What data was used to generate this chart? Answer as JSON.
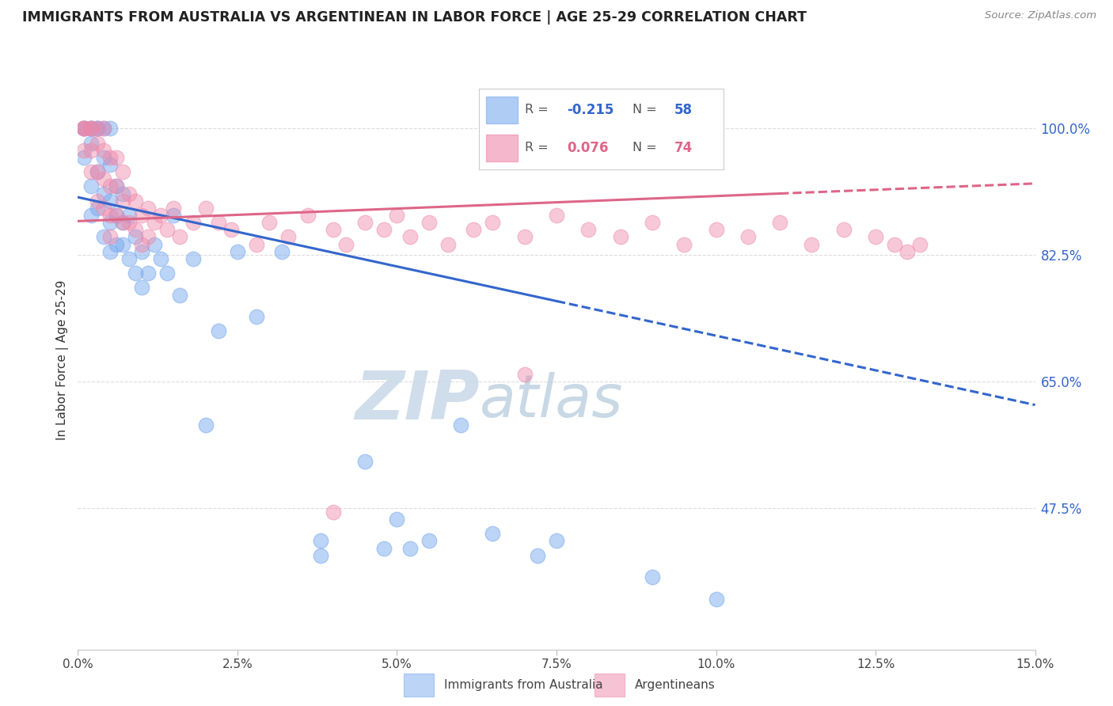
{
  "title": "IMMIGRANTS FROM AUSTRALIA VS ARGENTINEAN IN LABOR FORCE | AGE 25-29 CORRELATION CHART",
  "source": "Source: ZipAtlas.com",
  "ylabel": "In Labor Force | Age 25-29",
  "xmin": 0.0,
  "xmax": 0.15,
  "ymin": 0.28,
  "ymax": 1.08,
  "australia_R": -0.215,
  "australia_N": 58,
  "argentina_R": 0.076,
  "argentina_N": 74,
  "australia_color": "#7aaaee",
  "argentina_color": "#ee88aa",
  "blue_line_color": "#3366cc",
  "pink_line_color": "#dd6688",
  "blue_line_solid_end_x": 0.075,
  "blue_line_x0": 0.0,
  "blue_line_y0": 0.905,
  "blue_line_x1": 0.15,
  "blue_line_y1": 0.618,
  "pink_line_x0": 0.0,
  "pink_line_y0": 0.872,
  "pink_line_x1": 0.15,
  "pink_line_y1": 0.924,
  "pink_line_solid_end_x": 0.11,
  "ytick_vals": [
    0.475,
    0.65,
    0.825,
    1.0
  ],
  "ytick_labels": [
    "47.5%",
    "65.0%",
    "82.5%",
    "100.0%"
  ],
  "watermark_text_zip": "ZIP",
  "watermark_text_atlas": "atlas",
  "watermark_color": "#c8d8e8",
  "background_color": "#ffffff",
  "grid_color": "#dddddd",
  "aus_x": [
    0.001,
    0.001,
    0.001,
    0.002,
    0.002,
    0.002,
    0.002,
    0.002,
    0.003,
    0.003,
    0.003,
    0.003,
    0.004,
    0.004,
    0.004,
    0.004,
    0.005,
    0.005,
    0.005,
    0.005,
    0.005,
    0.006,
    0.006,
    0.006,
    0.007,
    0.007,
    0.007,
    0.008,
    0.008,
    0.009,
    0.009,
    0.01,
    0.01,
    0.011,
    0.012,
    0.013,
    0.014,
    0.015,
    0.016,
    0.018,
    0.02,
    0.022,
    0.025,
    0.028,
    0.032,
    0.038,
    0.038,
    0.045,
    0.048,
    0.05,
    0.052,
    0.055,
    0.06,
    0.065,
    0.072,
    0.075,
    0.09,
    0.1
  ],
  "aus_y": [
    1.0,
    1.0,
    0.96,
    1.0,
    1.0,
    0.98,
    0.92,
    0.88,
    1.0,
    1.0,
    0.94,
    0.89,
    1.0,
    0.96,
    0.91,
    0.85,
    1.0,
    0.95,
    0.9,
    0.87,
    0.83,
    0.92,
    0.88,
    0.84,
    0.91,
    0.87,
    0.84,
    0.88,
    0.82,
    0.85,
    0.8,
    0.83,
    0.78,
    0.8,
    0.84,
    0.82,
    0.8,
    0.88,
    0.77,
    0.82,
    0.59,
    0.72,
    0.83,
    0.74,
    0.83,
    0.41,
    0.43,
    0.54,
    0.42,
    0.46,
    0.42,
    0.43,
    0.59,
    0.44,
    0.41,
    0.43,
    0.38,
    0.35
  ],
  "arg_x": [
    0.001,
    0.001,
    0.001,
    0.001,
    0.002,
    0.002,
    0.002,
    0.002,
    0.003,
    0.003,
    0.003,
    0.003,
    0.004,
    0.004,
    0.004,
    0.004,
    0.005,
    0.005,
    0.005,
    0.005,
    0.006,
    0.006,
    0.006,
    0.007,
    0.007,
    0.007,
    0.008,
    0.008,
    0.009,
    0.009,
    0.01,
    0.01,
    0.011,
    0.011,
    0.012,
    0.013,
    0.014,
    0.015,
    0.016,
    0.018,
    0.02,
    0.022,
    0.024,
    0.028,
    0.03,
    0.033,
    0.036,
    0.04,
    0.042,
    0.045,
    0.048,
    0.05,
    0.052,
    0.055,
    0.058,
    0.062,
    0.065,
    0.07,
    0.075,
    0.08,
    0.085,
    0.09,
    0.095,
    0.1,
    0.105,
    0.11,
    0.115,
    0.12,
    0.125,
    0.128,
    0.13,
    0.132,
    0.07,
    0.04
  ],
  "arg_y": [
    1.0,
    1.0,
    1.0,
    0.97,
    1.0,
    1.0,
    0.97,
    0.94,
    1.0,
    0.98,
    0.94,
    0.9,
    1.0,
    0.97,
    0.93,
    0.89,
    0.96,
    0.92,
    0.88,
    0.85,
    0.96,
    0.92,
    0.88,
    0.94,
    0.9,
    0.87,
    0.91,
    0.87,
    0.9,
    0.86,
    0.88,
    0.84,
    0.89,
    0.85,
    0.87,
    0.88,
    0.86,
    0.89,
    0.85,
    0.87,
    0.89,
    0.87,
    0.86,
    0.84,
    0.87,
    0.85,
    0.88,
    0.86,
    0.84,
    0.87,
    0.86,
    0.88,
    0.85,
    0.87,
    0.84,
    0.86,
    0.87,
    0.85,
    0.88,
    0.86,
    0.85,
    0.87,
    0.84,
    0.86,
    0.85,
    0.87,
    0.84,
    0.86,
    0.85,
    0.84,
    0.83,
    0.84,
    0.66,
    0.47
  ]
}
